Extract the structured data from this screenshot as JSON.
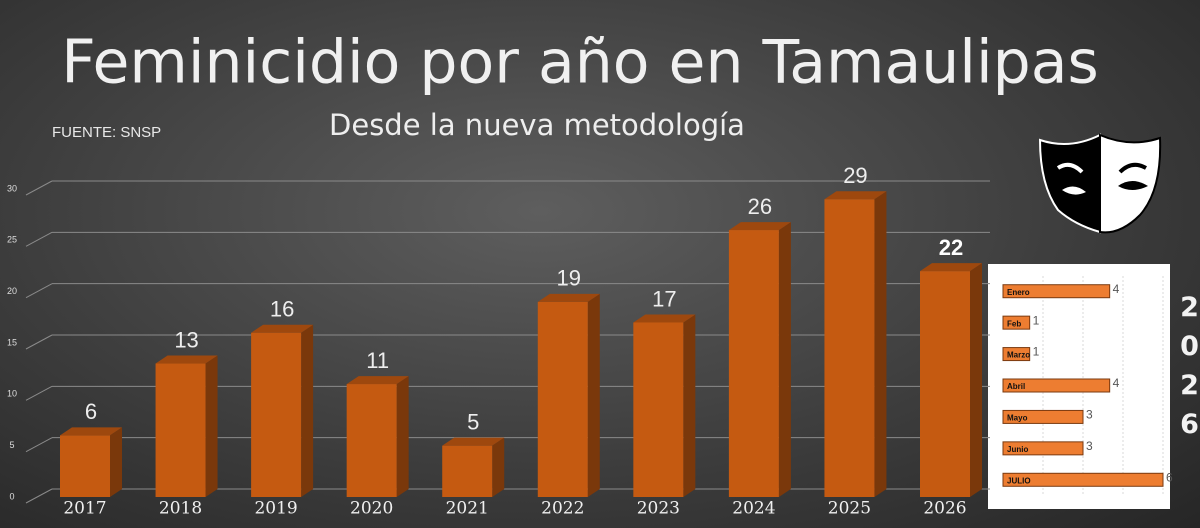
{
  "chart_data": [
    {
      "type": "bar3d",
      "title": "Feminicidio por año en Tamaulipas",
      "subtitle": "Desde la nueva metodología",
      "source": "FUENTE: SNSP",
      "categories": [
        "2017",
        "2018",
        "2019",
        "2020",
        "2021",
        "2022",
        "2023",
        "2024",
        "2025",
        "2026"
      ],
      "values": [
        6,
        13,
        16,
        11,
        5,
        19,
        17,
        26,
        29,
        22
      ],
      "color": "#c55a11",
      "ylim": [
        0,
        30
      ],
      "yticks": [
        0,
        5,
        10,
        15,
        20,
        25,
        30
      ],
      "grid": true
    },
    {
      "type": "hbar",
      "title": "2026",
      "categories": [
        "Enero",
        "Feb",
        "Marzo",
        "Abril",
        "Mayo",
        "Junio",
        "JULIO"
      ],
      "values": [
        4,
        1,
        1,
        4,
        3,
        3,
        6
      ],
      "color": "#ed7d31",
      "xlim": [
        0,
        6
      ],
      "grid": true
    }
  ]
}
